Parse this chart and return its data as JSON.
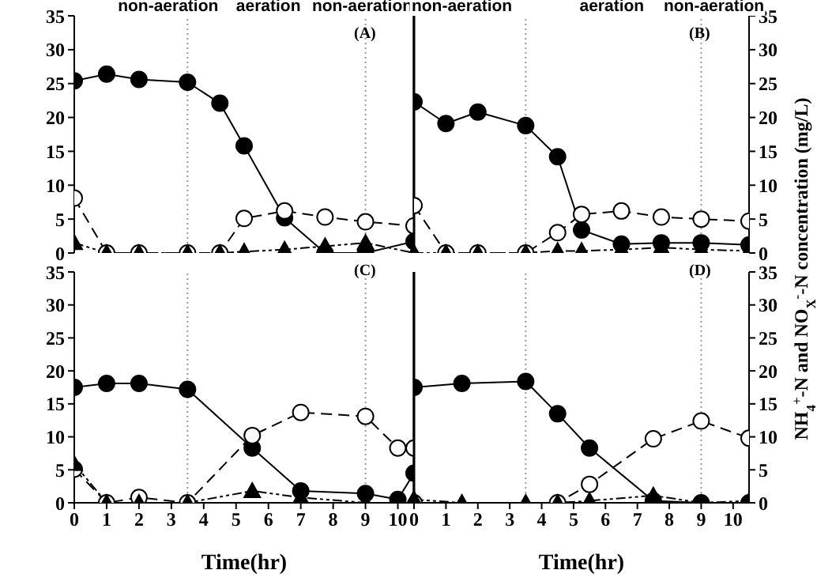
{
  "chart_data": [
    {
      "type": "line",
      "x": [
        0,
        1,
        2,
        3.5,
        4.5,
        5.25,
        6.5,
        7.75,
        9,
        10.5
      ],
      "xlim": [
        0,
        10.5
      ],
      "xticks": [
        0,
        1,
        2,
        3,
        4,
        5,
        6,
        7,
        8,
        9,
        10
      ],
      "ylim": [
        0,
        35
      ],
      "yticks": [
        0,
        5,
        10,
        15,
        20,
        25,
        30,
        35
      ],
      "tick_labels": "y",
      "grid": false,
      "legend": false,
      "series": [
        {
          "color": "#000000",
          "marker": "circle",
          "line_style": "solid",
          "values": [
            25.4,
            26.4,
            25.6,
            25.2,
            22.1,
            15.8,
            5.2,
            0,
            0,
            1.7
          ]
        },
        {
          "color": "#000000",
          "marker": "circle",
          "line_style": "dashed",
          "values": [
            8.1,
            0,
            0,
            0,
            0,
            5.1,
            6.2,
            5.3,
            4.6,
            4
          ]
        },
        {
          "color": "#000000",
          "marker": "triangle",
          "line_style": "dotted",
          "values": [
            1.5,
            0,
            0,
            0,
            0,
            0.2,
            0.5,
            1,
            1.5,
            0
          ]
        }
      ],
      "ref_lines": [
        {
          "axis": "x",
          "value": 3.5,
          "color": "#999999",
          "line_style": "dotted"
        },
        {
          "axis": "x",
          "value": 9,
          "color": "#999999",
          "line_style": "dotted"
        }
      ],
      "annotations": [
        "non-aeration",
        "aeration",
        "non-aeration",
        "(A)"
      ]
    },
    {
      "type": "line",
      "x": [
        0,
        1,
        2,
        3.5,
        4.5,
        5.25,
        6.5,
        7.75,
        9,
        10.5
      ],
      "xlim": [
        0,
        10.5
      ],
      "xticks": [
        0,
        1,
        2,
        3,
        4,
        5,
        6,
        7,
        8,
        9,
        10
      ],
      "ylim": [
        0,
        35
      ],
      "yticks": [
        0,
        5,
        10,
        15,
        20,
        25,
        30,
        35
      ],
      "tick_labels": "y",
      "grid": false,
      "legend": false,
      "ylabel": "NH$_{4}$$^{+}$-N and NO$_{X}$$^{-}$-N concentration (mg/L)",
      "series": [
        {
          "color": "#000000",
          "marker": "circle",
          "line_style": "solid",
          "values": [
            22.3,
            19.1,
            20.8,
            18.8,
            14.2,
            3.4,
            1.3,
            1.5,
            1.5,
            1.2
          ]
        },
        {
          "color": "#000000",
          "marker": "circle",
          "line_style": "dashed",
          "values": [
            7,
            0,
            0,
            0,
            3,
            5.7,
            6.2,
            5.3,
            5,
            4.7
          ]
        },
        {
          "color": "#000000",
          "marker": "triangle",
          "line_style": "dotted",
          "values": [
            0,
            0,
            0,
            0,
            0.3,
            0.3,
            0.5,
            0.8,
            0.5,
            0.3
          ]
        }
      ],
      "ref_lines": [
        {
          "axis": "x",
          "value": 3.5,
          "color": "#999999",
          "line_style": "dotted"
        },
        {
          "axis": "x",
          "value": 9,
          "color": "#999999",
          "line_style": "dotted"
        }
      ],
      "annotations": [
        "non-aeration",
        "aeration",
        "non-aeration",
        "(B)"
      ]
    },
    {
      "type": "line",
      "x": [
        0,
        1,
        2,
        3.5,
        5.5,
        7,
        9,
        10,
        10.5
      ],
      "xlim": [
        0,
        10.5
      ],
      "xticks": [
        0,
        1,
        2,
        3,
        4,
        5,
        6,
        7,
        8,
        9,
        10
      ],
      "ylim": [
        0,
        35
      ],
      "yticks": [
        0,
        5,
        10,
        15,
        20,
        25,
        30,
        35
      ],
      "grid": false,
      "legend": false,
      "xlabel": "Time(hr)",
      "series": [
        {
          "color": "#000000",
          "marker": "circle",
          "line_style": "solid",
          "values": [
            17.5,
            18.1,
            18.1,
            17.2,
            8.3,
            1.8,
            1.4,
            0.5,
            4.5
          ]
        },
        {
          "color": "#000000",
          "marker": "circle",
          "line_style": "dashed",
          "values": [
            5.1,
            0,
            0.8,
            0,
            10.2,
            13.7,
            13.1,
            8.3,
            8.3
          ]
        },
        {
          "color": "#000000",
          "marker": "triangle",
          "line_style": "dotted",
          "values": [
            5.9,
            0,
            0,
            0,
            1.8,
            0.8,
            0,
            0,
            0.6
          ]
        }
      ],
      "ref_lines": [
        {
          "axis": "x",
          "value": 3.5,
          "color": "#999999",
          "line_style": "dotted"
        },
        {
          "axis": "x",
          "value": 9,
          "color": "#999999",
          "line_style": "dotted"
        }
      ],
      "annotations": [
        "(C)"
      ]
    },
    {
      "type": "line",
      "x": [
        0,
        1.5,
        3.5,
        4.5,
        5.5,
        7.5,
        9,
        10.5
      ],
      "xlim": [
        0,
        10.5
      ],
      "xticks": [
        0,
        1,
        2,
        3,
        4,
        5,
        6,
        7,
        8,
        9,
        10
      ],
      "ylim": [
        0,
        35
      ],
      "yticks": [
        0,
        5,
        10,
        15,
        20,
        25,
        30,
        35
      ],
      "grid": false,
      "legend": false,
      "xlabel": "Time(hr)",
      "series": [
        {
          "color": "#000000",
          "marker": "circle",
          "line_style": "solid",
          "values": [
            17.5,
            18.1,
            18.4,
            13.5,
            8.3,
            0.3,
            0,
            0
          ]
        },
        {
          "color": "#000000",
          "marker": "circle",
          "line_style": "dashed",
          "values": [
            0,
            null,
            null,
            0,
            2.8,
            9.7,
            12.4,
            9.8
          ]
        },
        {
          "color": "#000000",
          "marker": "triangle",
          "line_style": "dotted",
          "values": [
            0.5,
            0,
            0,
            0,
            0.3,
            1.1,
            0,
            0.3
          ]
        }
      ],
      "ref_lines": [
        {
          "axis": "x",
          "value": 3.5,
          "color": "#999999",
          "line_style": "dotted"
        },
        {
          "axis": "x",
          "value": 9,
          "color": "#999999",
          "line_style": "dotted"
        }
      ],
      "annotations": [
        "(D)"
      ]
    }
  ]
}
